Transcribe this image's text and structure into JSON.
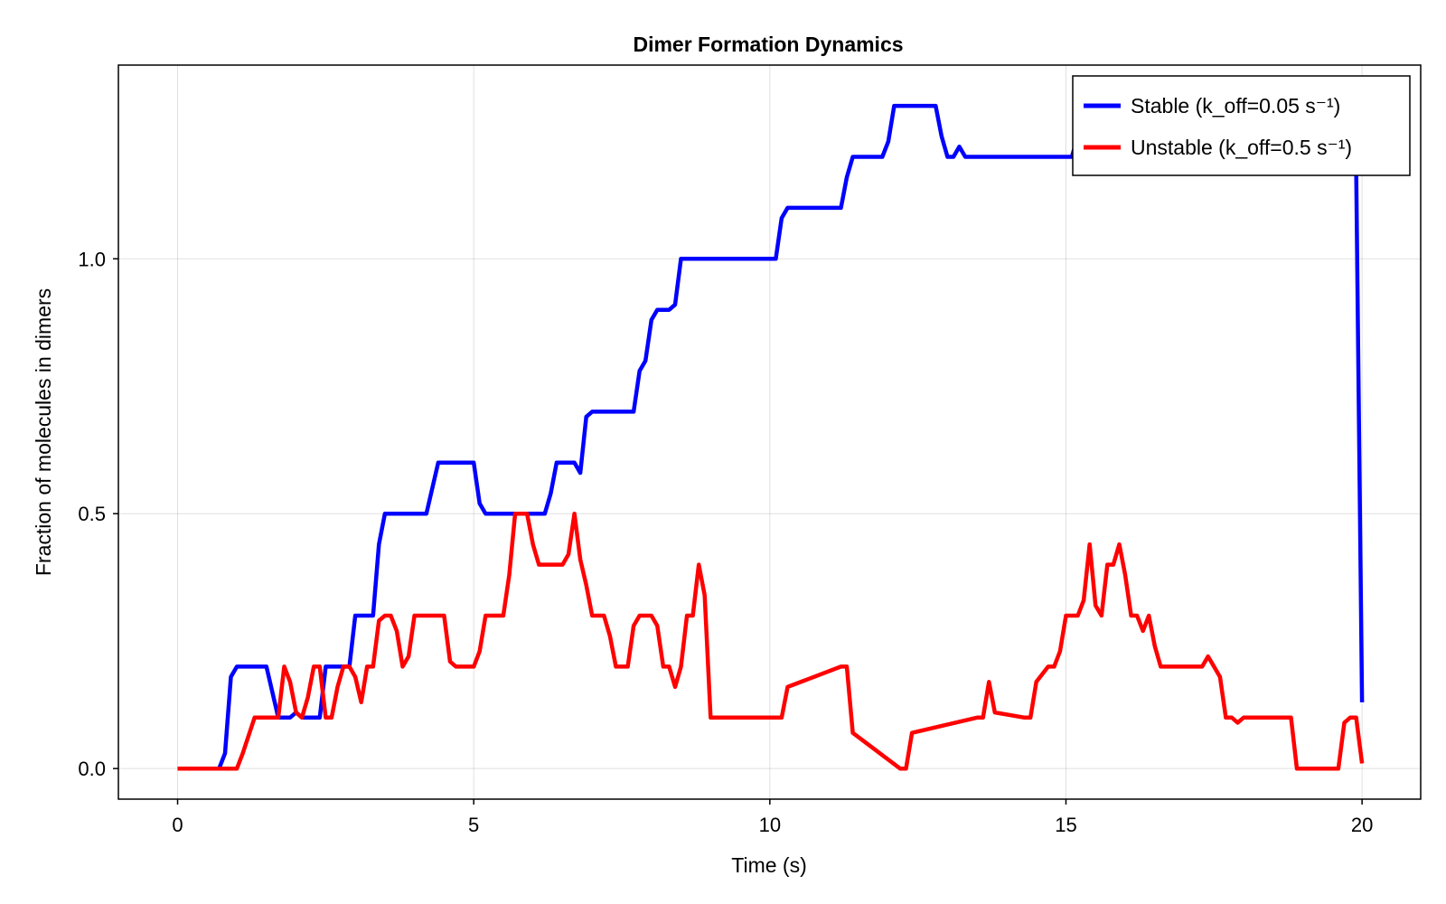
{
  "chart_data": {
    "type": "line",
    "title": "Dimer Formation Dynamics",
    "xlabel": "Time (s)",
    "ylabel": "Fraction of molecules in dimers",
    "xlim": [
      -1.0,
      20.99
    ],
    "ylim": [
      -0.06,
      1.38
    ],
    "xticks": [
      0,
      5,
      10,
      15,
      20
    ],
    "xtick_labels": [
      "0",
      "5",
      "10",
      "15",
      "20"
    ],
    "yticks": [
      0.0,
      0.5,
      1.0
    ],
    "ytick_labels": [
      "0.0",
      "0.5",
      "1.0"
    ],
    "grid": true,
    "legend_position": "top-right",
    "series": [
      {
        "name": "Stable (k_off=0.05 s⁻¹)",
        "color": "#0000ff",
        "x": [
          0,
          0.7,
          0.8,
          0.9,
          1.0,
          1.5,
          1.7,
          1.9,
          2.0,
          2.1,
          2.2,
          2.4,
          2.5,
          2.9,
          3.0,
          3.3,
          3.4,
          3.5,
          4.2,
          4.4,
          5.0,
          5.1,
          5.2,
          6.2,
          6.3,
          6.4,
          6.6,
          6.7,
          6.8,
          6.9,
          7.0,
          7.7,
          7.8,
          7.9,
          8.0,
          8.1,
          8.3,
          8.4,
          8.5,
          10.1,
          10.2,
          10.3,
          11.2,
          11.3,
          11.4,
          11.9,
          12.0,
          12.1,
          12.8,
          12.9,
          13.0,
          13.1,
          13.2,
          13.3,
          15.0,
          15.1,
          15.2,
          19.9,
          20.0
        ],
        "y": [
          0.0,
          0.0,
          0.03,
          0.18,
          0.2,
          0.2,
          0.1,
          0.1,
          0.11,
          0.1,
          0.1,
          0.1,
          0.2,
          0.2,
          0.3,
          0.3,
          0.44,
          0.5,
          0.5,
          0.6,
          0.6,
          0.52,
          0.5,
          0.5,
          0.54,
          0.6,
          0.6,
          0.6,
          0.58,
          0.69,
          0.7,
          0.7,
          0.78,
          0.8,
          0.88,
          0.9,
          0.9,
          0.91,
          1.0,
          1.0,
          1.08,
          1.1,
          1.1,
          1.16,
          1.2,
          1.2,
          1.23,
          1.3,
          1.3,
          1.24,
          1.2,
          1.2,
          1.22,
          1.2,
          1.2,
          1.2,
          1.24,
          1.18,
          0.13
        ]
      },
      {
        "name": "Unstable (k_off=0.5 s⁻¹)",
        "color": "#ff0000",
        "x": [
          0,
          1.0,
          1.1,
          1.3,
          1.6,
          1.7,
          1.8,
          1.9,
          2.0,
          2.1,
          2.2,
          2.3,
          2.4,
          2.5,
          2.6,
          2.7,
          2.8,
          2.9,
          3.0,
          3.1,
          3.2,
          3.3,
          3.4,
          3.5,
          3.6,
          3.7,
          3.8,
          3.9,
          4.0,
          4.1,
          4.5,
          4.6,
          4.7,
          5.0,
          5.1,
          5.2,
          5.5,
          5.6,
          5.7,
          5.8,
          5.9,
          6.0,
          6.1,
          6.5,
          6.6,
          6.7,
          6.8,
          6.9,
          7.0,
          7.2,
          7.3,
          7.4,
          7.5,
          7.6,
          7.7,
          7.8,
          8.0,
          8.1,
          8.2,
          8.3,
          8.4,
          8.5,
          8.6,
          8.7,
          8.8,
          8.9,
          9.0,
          10.1,
          10.2,
          10.3,
          11.2,
          11.3,
          11.4,
          12.2,
          12.3,
          12.4,
          13.5,
          13.6,
          13.7,
          13.8,
          14.3,
          14.4,
          14.5,
          14.7,
          14.8,
          14.9,
          15.0,
          15.2,
          15.3,
          15.4,
          15.5,
          15.6,
          15.7,
          15.8,
          15.9,
          16.0,
          16.1,
          16.2,
          16.3,
          16.4,
          16.5,
          16.6,
          17.3,
          17.4,
          17.5,
          17.6,
          17.7,
          17.8,
          17.9,
          18.0,
          18.8,
          18.9,
          19.6,
          19.7,
          19.8,
          19.9,
          20.0
        ],
        "y": [
          0.0,
          0.0,
          0.03,
          0.1,
          0.1,
          0.1,
          0.2,
          0.17,
          0.11,
          0.1,
          0.14,
          0.2,
          0.2,
          0.1,
          0.1,
          0.16,
          0.2,
          0.2,
          0.18,
          0.13,
          0.2,
          0.2,
          0.29,
          0.3,
          0.3,
          0.27,
          0.2,
          0.22,
          0.3,
          0.3,
          0.3,
          0.21,
          0.2,
          0.2,
          0.23,
          0.3,
          0.3,
          0.38,
          0.5,
          0.5,
          0.5,
          0.44,
          0.4,
          0.4,
          0.42,
          0.5,
          0.41,
          0.36,
          0.3,
          0.3,
          0.26,
          0.2,
          0.2,
          0.2,
          0.28,
          0.3,
          0.3,
          0.28,
          0.2,
          0.2,
          0.16,
          0.2,
          0.3,
          0.3,
          0.4,
          0.34,
          0.1,
          0.1,
          0.1,
          0.16,
          0.2,
          0.2,
          0.07,
          0.0,
          0.0,
          0.07,
          0.1,
          0.1,
          0.17,
          0.11,
          0.1,
          0.1,
          0.17,
          0.2,
          0.2,
          0.23,
          0.3,
          0.3,
          0.33,
          0.44,
          0.32,
          0.3,
          0.4,
          0.4,
          0.44,
          0.38,
          0.3,
          0.3,
          0.27,
          0.3,
          0.24,
          0.2,
          0.2,
          0.22,
          0.2,
          0.18,
          0.1,
          0.1,
          0.09,
          0.1,
          0.1,
          0.0,
          0.0,
          0.09,
          0.1,
          0.1,
          0.01
        ]
      }
    ]
  }
}
